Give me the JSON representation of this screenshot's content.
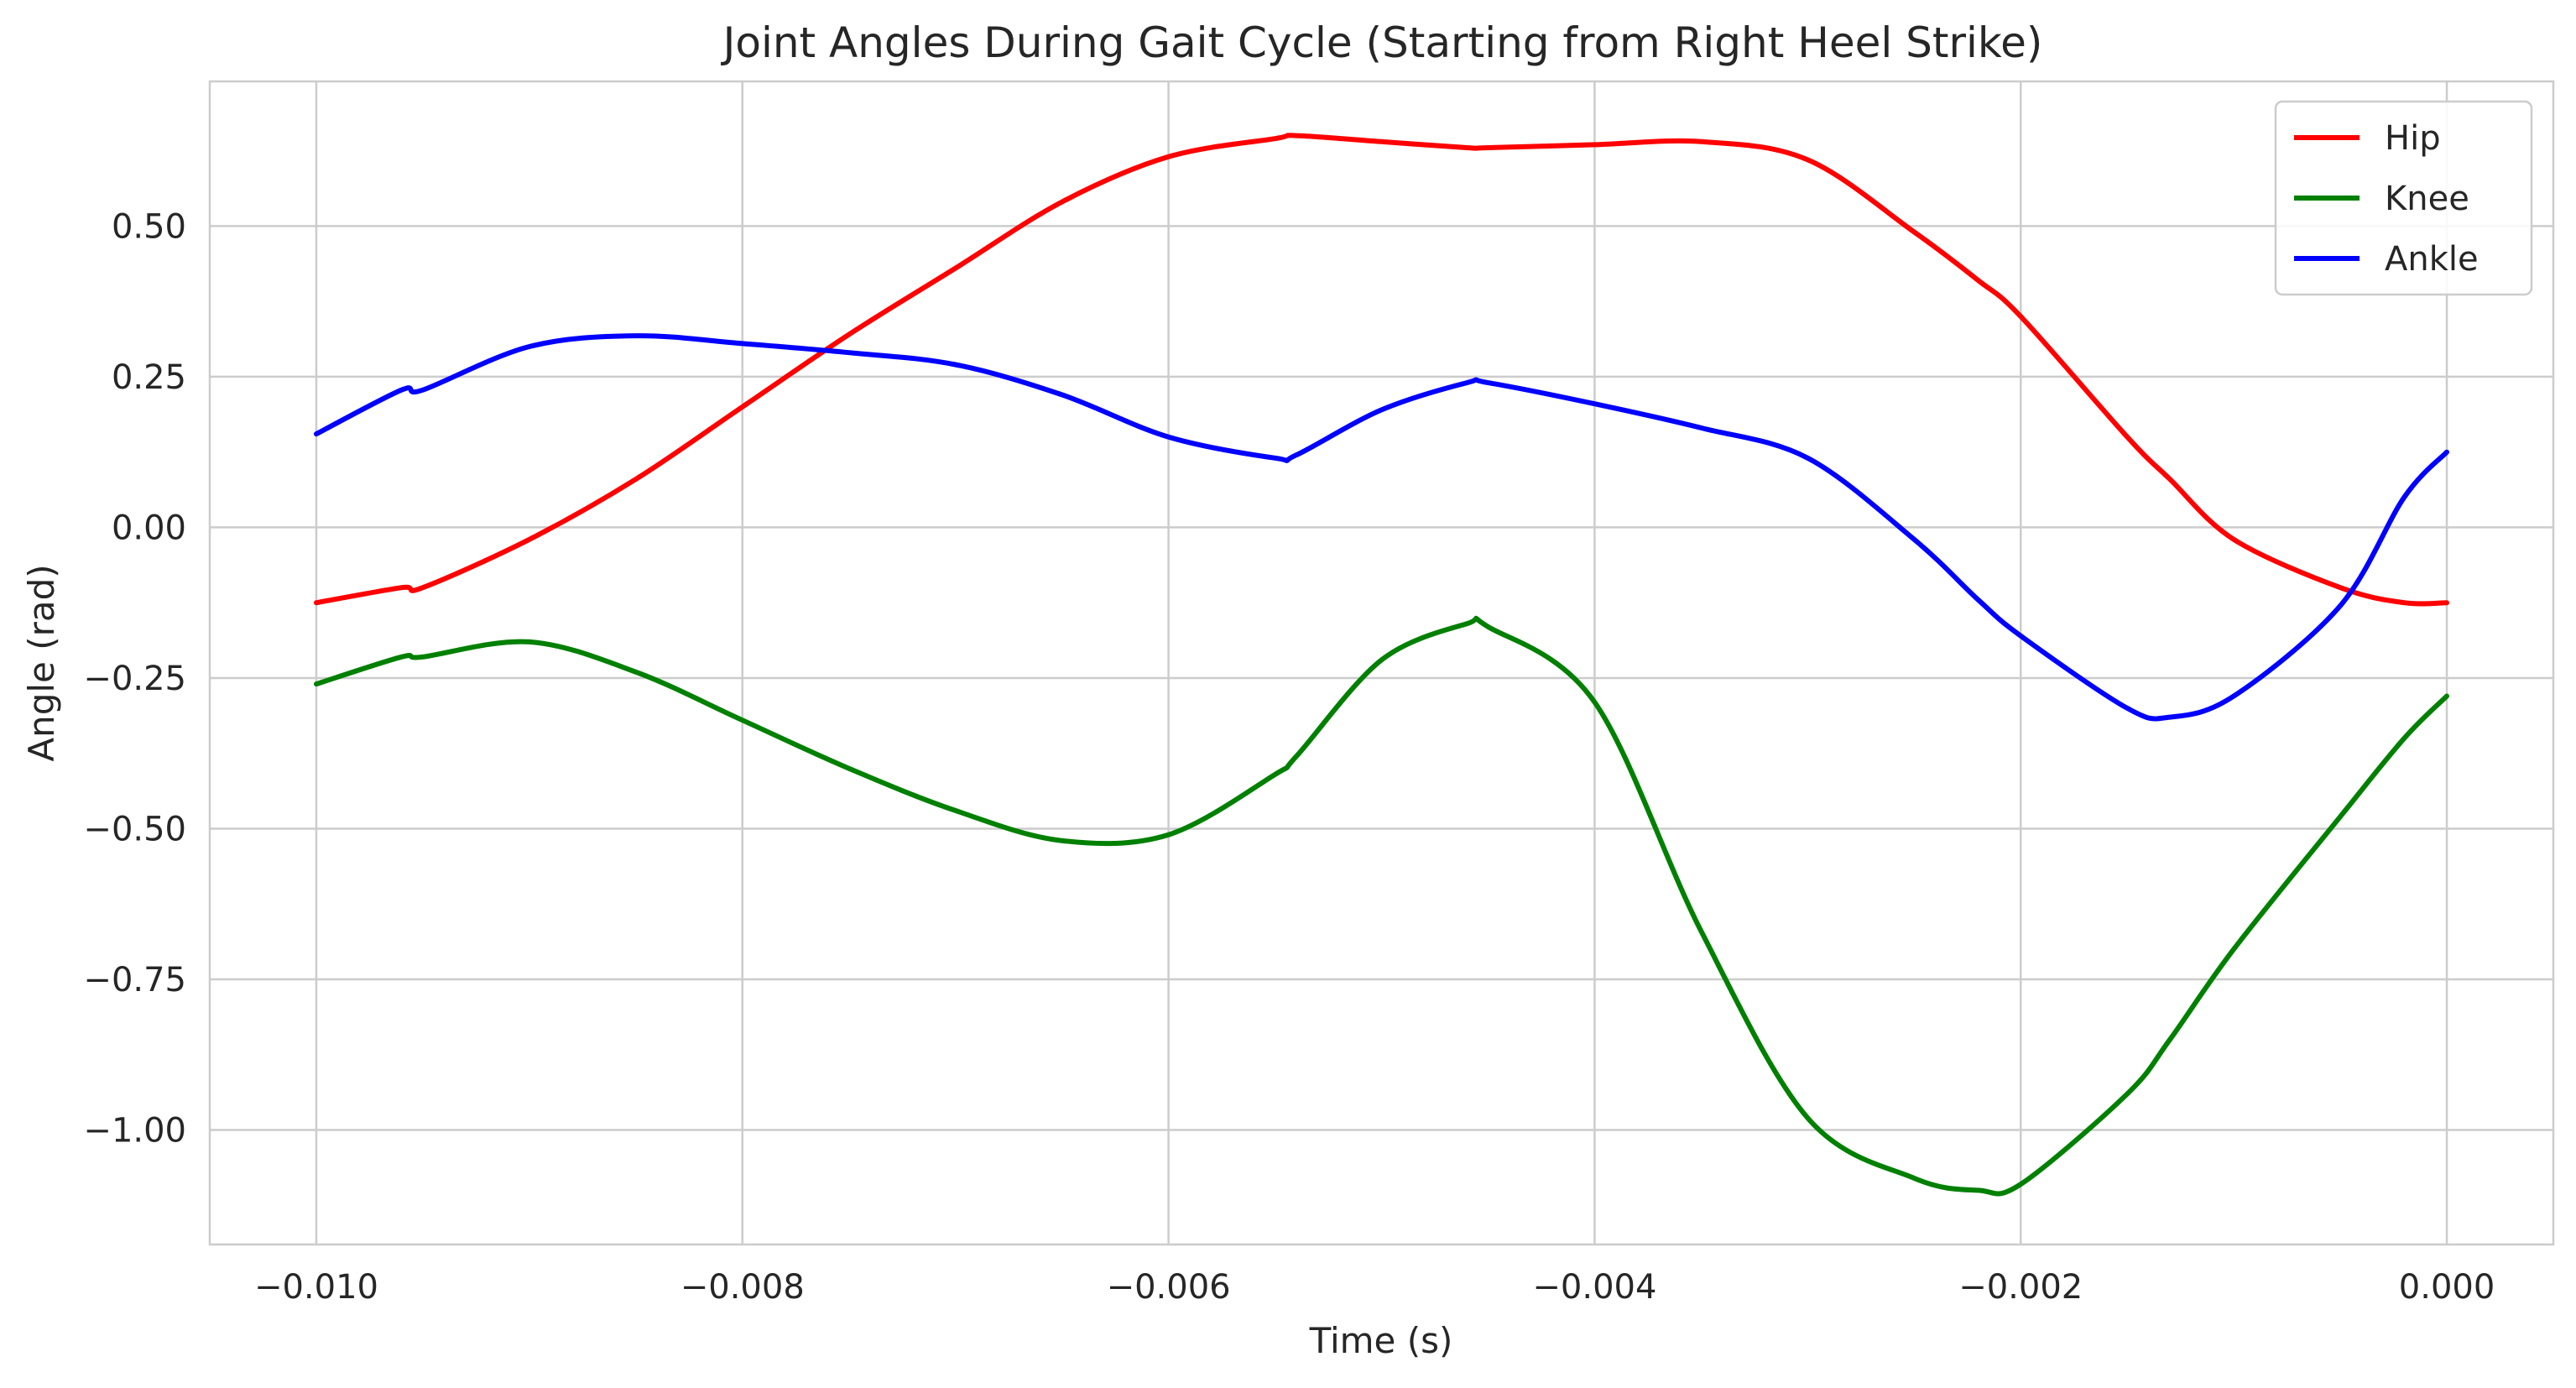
{
  "chart_data": {
    "type": "line",
    "title": "Joint Angles During Gait Cycle (Starting from Right Heel Strike)",
    "xlabel": "Time (s)",
    "ylabel": "Angle (rad)",
    "xlim": [
      -0.0105,
      0.0005
    ],
    "ylim": [
      -1.19,
      0.74
    ],
    "x_ticks": [
      -0.01,
      -0.008,
      -0.006,
      -0.004,
      -0.002,
      0.0
    ],
    "x_tick_labels": [
      "−0.010",
      "−0.008",
      "−0.006",
      "−0.004",
      "−0.002",
      "0.000"
    ],
    "y_ticks": [
      0.5,
      0.25,
      0.0,
      -0.25,
      -0.5,
      -0.75,
      -1.0
    ],
    "y_tick_labels": [
      "0.50",
      "0.25",
      "0.00",
      "−0.25",
      "−0.50",
      "−0.75",
      "−1.00"
    ],
    "grid": true,
    "legend_position": "top-right",
    "x": [
      -0.01,
      -0.0096,
      -0.0095,
      -0.009,
      -0.0085,
      -0.008,
      -0.0075,
      -0.007,
      -0.0065,
      -0.006,
      -0.0055,
      -0.0054,
      -0.005,
      -0.0046,
      -0.0045,
      -0.004,
      -0.0035,
      -0.003,
      -0.0025,
      -0.0022,
      -0.002,
      -0.0015,
      -0.0013,
      -0.001,
      -0.0005,
      -0.0002,
      0.0
    ],
    "series": [
      {
        "name": "Hip",
        "color": "#ff0000",
        "values": [
          -0.125,
          -0.1,
          -0.1,
          -0.02,
          0.08,
          0.2,
          0.32,
          0.43,
          0.54,
          0.615,
          0.645,
          0.65,
          0.64,
          0.63,
          0.63,
          0.635,
          0.64,
          0.61,
          0.49,
          0.41,
          0.35,
          0.15,
          0.08,
          -0.02,
          -0.1,
          -0.125,
          -0.125
        ]
      },
      {
        "name": "Knee",
        "color": "#008000",
        "values": [
          -0.26,
          -0.215,
          -0.215,
          -0.19,
          -0.24,
          -0.32,
          -0.4,
          -0.47,
          -0.52,
          -0.51,
          -0.41,
          -0.38,
          -0.22,
          -0.16,
          -0.165,
          -0.29,
          -0.67,
          -0.98,
          -1.08,
          -1.1,
          -1.09,
          -0.94,
          -0.85,
          -0.7,
          -0.48,
          -0.35,
          -0.28
        ]
      },
      {
        "name": "Ankle",
        "color": "#0000ff",
        "values": [
          0.155,
          0.228,
          0.228,
          0.3,
          0.318,
          0.305,
          0.29,
          0.27,
          0.22,
          0.15,
          0.115,
          0.12,
          0.195,
          0.24,
          0.24,
          0.205,
          0.165,
          0.115,
          -0.02,
          -0.12,
          -0.18,
          -0.3,
          -0.315,
          -0.28,
          -0.13,
          0.05,
          0.125
        ]
      }
    ]
  }
}
